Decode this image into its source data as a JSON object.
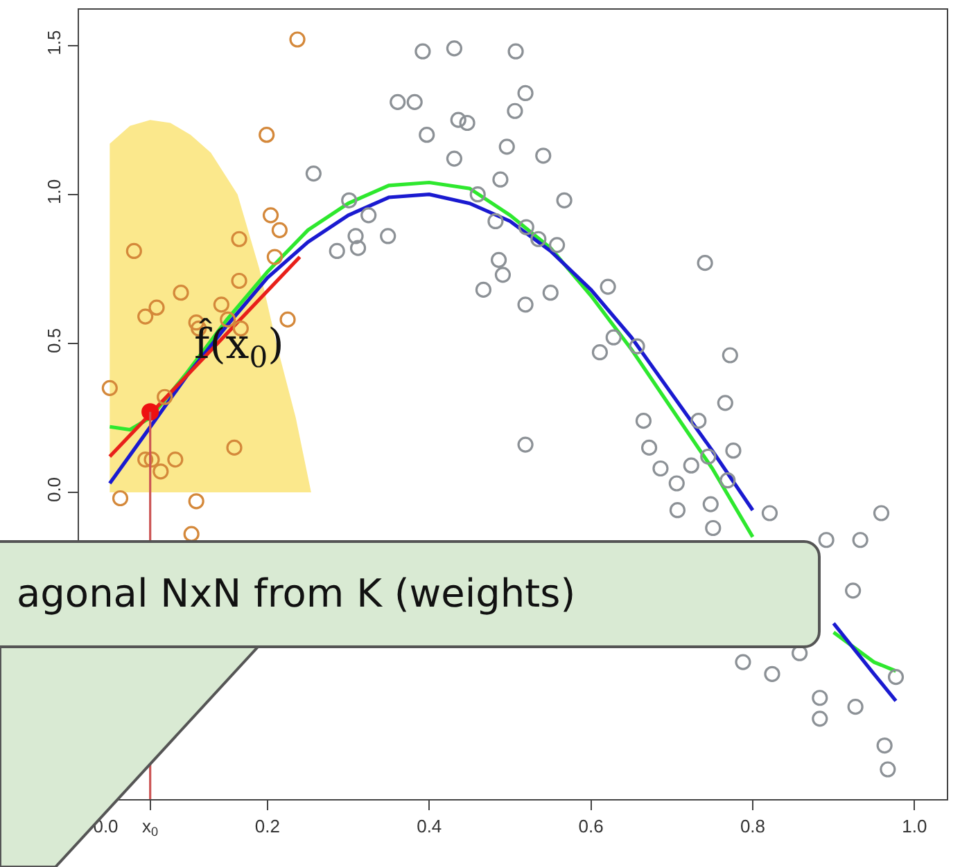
{
  "chart_data": {
    "type": "scatter",
    "line_style": "solid",
    "legend": false,
    "xlim": [
      -0.033,
      1.04
    ],
    "ylim": [
      -1.03,
      1.62
    ],
    "xticks": [
      {
        "value": 0,
        "label": "0.0"
      },
      {
        "value": 0.055,
        "label": "x$_{0}$"
      },
      0.2,
      0.4,
      0.6,
      0.8,
      {
        "value": 1,
        "label": "1.0"
      }
    ],
    "yticks": [
      {
        "value": 0,
        "label": "0.0"
      },
      0.5,
      {
        "value": 1,
        "label": "1.0"
      },
      1.5
    ],
    "ref_lines": [
      {
        "axis": "x",
        "value": 0.055,
        "color": "#cc5555"
      }
    ],
    "annotations": [
      "f̂(x$_{0}$)",
      "agonal NxN from K (weights)"
    ],
    "series": [
      {
        "type": "area",
        "color": "#fbe88c",
        "x": [
          0.005,
          0.03,
          0.055,
          0.08,
          0.105,
          0.13,
          0.163,
          0.19,
          0.211,
          0.235,
          0.254
        ],
        "values": [
          1.17,
          1.23,
          1.25,
          1.24,
          1.2,
          1.14,
          1.0,
          0.75,
          0.5,
          0.25,
          0.0
        ]
      },
      {
        "marker": "circle",
        "color": "#d4883a",
        "x": [
          0.237,
          0.199,
          0.204,
          0.215,
          0.165,
          0.035,
          0.209,
          0.165,
          0.093,
          0.143,
          0.063,
          0.049,
          0.225,
          0.112,
          0.115,
          0.151,
          0.167,
          0.005,
          0.073,
          0.159,
          0.049,
          0.057,
          0.086,
          0.068,
          0.018,
          0.112,
          0.106
        ],
        "values": [
          1.52,
          1.2,
          0.93,
          0.88,
          0.85,
          0.81,
          0.79,
          0.71,
          0.67,
          0.63,
          0.62,
          0.59,
          0.58,
          0.57,
          0.55,
          0.58,
          0.55,
          0.35,
          0.32,
          0.15,
          0.11,
          0.11,
          0.11,
          0.07,
          -0.02,
          -0.03,
          -0.14
        ]
      },
      {
        "marker": "circle",
        "color": "#8c9196",
        "x": [
          0.257,
          0.392,
          0.431,
          0.361,
          0.382,
          0.397,
          0.436,
          0.447,
          0.431,
          0.301,
          0.325,
          0.309,
          0.312,
          0.286,
          0.349,
          0.507,
          0.519,
          0.506,
          0.496,
          0.541,
          0.488,
          0.46,
          0.567,
          0.482,
          0.52,
          0.535,
          0.558,
          0.486,
          0.491,
          0.467,
          0.55,
          0.519,
          0.741,
          0.621,
          0.628,
          0.611,
          0.657,
          0.772,
          0.519,
          0.665,
          0.733,
          0.766,
          0.672,
          0.686,
          0.724,
          0.745,
          0.776,
          0.706,
          0.769,
          0.707,
          0.748,
          0.751,
          0.821,
          0.891,
          0.933,
          0.959,
          0.924,
          0.788,
          0.824,
          0.858,
          0.977,
          0.883,
          0.883,
          0.927,
          0.963,
          0.967
        ],
        "values": [
          1.07,
          1.48,
          1.49,
          1.31,
          1.31,
          1.2,
          1.25,
          1.24,
          1.12,
          0.98,
          0.93,
          0.86,
          0.82,
          0.81,
          0.86,
          1.48,
          1.34,
          1.28,
          1.16,
          1.13,
          1.05,
          1.0,
          0.98,
          0.91,
          0.89,
          0.85,
          0.83,
          0.78,
          0.73,
          0.68,
          0.67,
          0.63,
          0.77,
          0.69,
          0.52,
          0.47,
          0.49,
          0.46,
          0.16,
          0.24,
          0.24,
          0.3,
          0.15,
          0.08,
          0.09,
          0.12,
          0.14,
          0.03,
          0.04,
          -0.06,
          -0.04,
          -0.12,
          -0.07,
          -0.16,
          -0.16,
          -0.07,
          -0.33,
          -0.57,
          -0.61,
          -0.54,
          -0.62,
          -0.69,
          -0.76,
          -0.72,
          -0.85,
          -0.93
        ]
      },
      {
        "type": "line",
        "color": "#2ee82e",
        "x": [
          0.005,
          0.03,
          0.055,
          0.1,
          0.15,
          0.2,
          0.25,
          0.3,
          0.35,
          0.4,
          0.45,
          0.5,
          0.55,
          0.6,
          0.65,
          0.7,
          0.75,
          0.8,
          0.85,
          0.9,
          0.95,
          0.977
        ],
        "values": [
          0.22,
          0.21,
          0.25,
          0.4,
          0.58,
          0.74,
          0.88,
          0.97,
          1.03,
          1.04,
          1.02,
          0.93,
          0.82,
          0.66,
          0.48,
          0.28,
          0.08,
          -0.15,
          null,
          -0.47,
          -0.57,
          -0.6
        ]
      },
      {
        "type": "line",
        "color": "#1a1ad0",
        "x": [
          0.005,
          0.05,
          0.1,
          0.15,
          0.2,
          0.25,
          0.3,
          0.35,
          0.4,
          0.45,
          0.5,
          0.55,
          0.6,
          0.65,
          0.7,
          0.75,
          0.8,
          0.85,
          0.9,
          0.95,
          0.977
        ],
        "values": [
          0.03,
          0.2,
          0.39,
          0.56,
          0.72,
          0.84,
          0.93,
          0.99,
          1.0,
          0.97,
          0.91,
          0.81,
          0.68,
          0.52,
          0.33,
          0.14,
          -0.06,
          null,
          -0.44,
          -0.61,
          -0.7
        ]
      },
      {
        "type": "line",
        "color": "#e8201a",
        "x": [
          0.005,
          0.24
        ],
        "values": [
          0.12,
          0.79
        ]
      },
      {
        "marker": "circle",
        "color": "#ee1111",
        "x": [
          0.055
        ],
        "values": [
          0.27
        ]
      }
    ]
  }
}
